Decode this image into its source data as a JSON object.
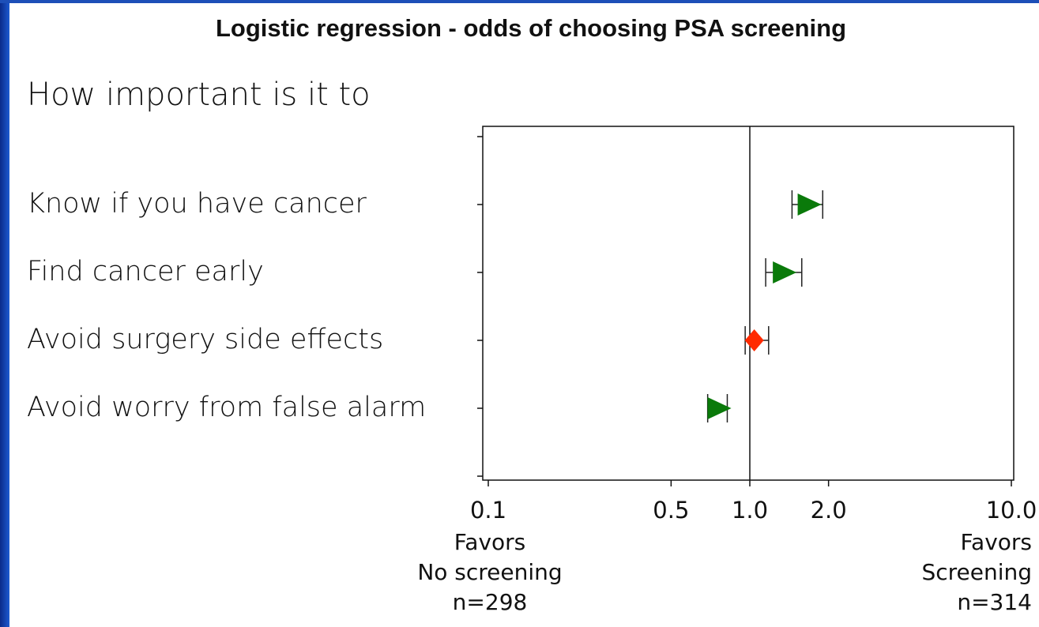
{
  "chart_data": {
    "type": "forest",
    "title": "Logistic regression - odds of choosing PSA screening",
    "subtitle": "How important is it to",
    "categories": [
      "Know if you have cancer",
      "Find cancer early",
      "Avoid surgery side effects",
      "Avoid worry from false alarm"
    ],
    "values": [
      1.68,
      1.35,
      1.04,
      0.76
    ],
    "lower": [
      1.45,
      1.15,
      0.96,
      0.69
    ],
    "upper": [
      1.9,
      1.58,
      1.18,
      0.82
    ],
    "colors": [
      "#0a7a0a",
      "#0a7a0a",
      "#ff2a00",
      "#0a7a0a"
    ],
    "markers": [
      "triangle",
      "triangle",
      "diamond",
      "triangle"
    ],
    "log_x": true,
    "refline": 1,
    "xlim": [
      0.1,
      10
    ],
    "xticks": [
      0.1,
      0.5,
      {
        "value": 1,
        "label": "1.0"
      },
      {
        "value": 2,
        "label": "2.0"
      },
      {
        "value": 10,
        "label": "10.0"
      }
    ],
    "left_note": [
      "Favors",
      "No screening",
      "n=298"
    ],
    "right_note": [
      "Favors",
      "Screening",
      "n=314"
    ]
  }
}
